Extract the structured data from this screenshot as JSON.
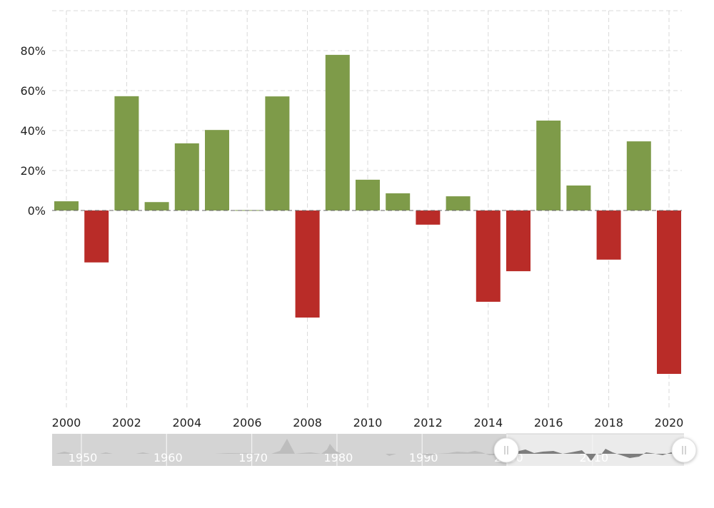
{
  "chart_data": {
    "type": "bar",
    "title": "",
    "xlabel": "",
    "ylabel": "",
    "categories": [
      "2000",
      "2001",
      "2002",
      "2003",
      "2004",
      "2005",
      "2006",
      "2007",
      "2008",
      "2009",
      "2010",
      "2011",
      "2012",
      "2013",
      "2014",
      "2015",
      "2016",
      "2017",
      "2018",
      "2019",
      "2020"
    ],
    "values": [
      4.6,
      -26.0,
      57.2,
      4.2,
      33.6,
      40.3,
      0.2,
      57.1,
      -53.6,
      77.9,
      15.4,
      8.6,
      -7.1,
      7.1,
      -45.7,
      -30.4,
      45.0,
      12.5,
      -24.6,
      34.6,
      -81.8
    ],
    "ylim": [
      -100,
      100
    ],
    "y_ticks": [
      "0%",
      "20%",
      "40%",
      "60%",
      "80%"
    ],
    "x_ticks": [
      "2000",
      "2002",
      "2004",
      "2006",
      "2008",
      "2010",
      "2012",
      "2014",
      "2016",
      "2018",
      "2020"
    ],
    "grid": true,
    "legend": null,
    "positive_color": "#7e9b49",
    "negative_color": "#b92c28"
  },
  "navigator": {
    "labels": [
      "1950",
      "1960",
      "1970",
      "1980",
      "1990",
      "2000",
      "2010"
    ],
    "range_start": "2000",
    "range_end": "2020",
    "left_handle_icon": "grip-lines-icon",
    "right_handle_icon": "grip-lines-icon"
  }
}
